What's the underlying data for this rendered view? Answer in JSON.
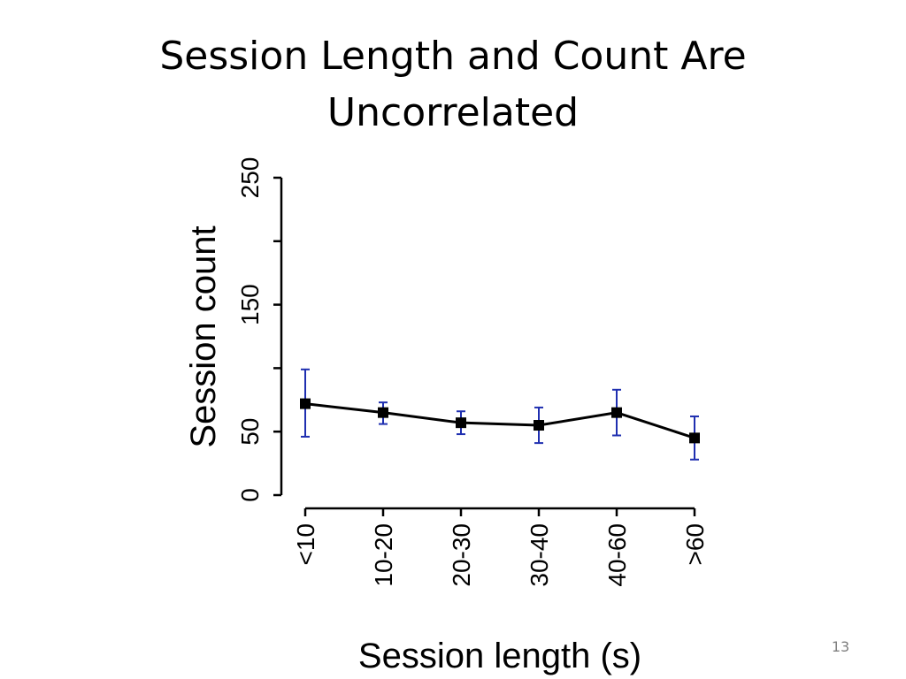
{
  "slide": {
    "title_line1": "Session Length and Count Are",
    "title_line2": "Uncorrelated",
    "page_number": "13"
  },
  "chart_data": {
    "type": "line",
    "title": "",
    "xlabel": "Session length (s)",
    "ylabel": "Session count",
    "categories": [
      "<10",
      "10-20",
      "20-30",
      "30-40",
      "40-60",
      ">60"
    ],
    "series": [
      {
        "values": [
          72,
          65,
          57,
          55,
          65,
          45
        ],
        "error_low": [
          46,
          56,
          48,
          41,
          47,
          28
        ],
        "error_high": [
          99,
          73,
          66,
          69,
          83,
          62
        ]
      }
    ],
    "ylim": [
      0,
      250
    ],
    "yticks": [
      0,
      50,
      100,
      150,
      200,
      250
    ],
    "ytick_labels": [
      "0",
      "50",
      "",
      "150",
      "",
      "250"
    ],
    "grid": false,
    "line_color": "#000000",
    "error_bar_color": "#1f2fb0",
    "marker": "square"
  }
}
